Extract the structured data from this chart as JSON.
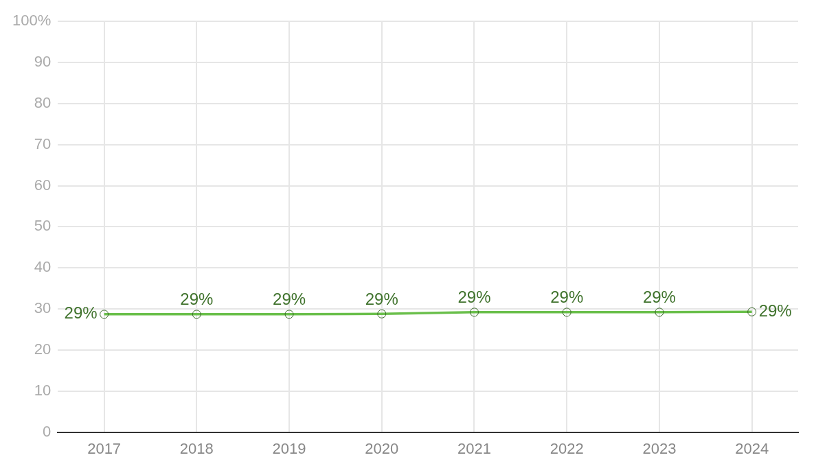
{
  "chart_data": {
    "type": "line",
    "categories": [
      "2017",
      "2018",
      "2019",
      "2020",
      "2021",
      "2022",
      "2023",
      "2024"
    ],
    "series": [
      {
        "color": "#6abf4b",
        "values": [
          28.7,
          28.7,
          28.7,
          28.8,
          29.2,
          29.2,
          29.2,
          29.3
        ],
        "value_labels": [
          "29%",
          "29%",
          "29%",
          "29%",
          "29%",
          "29%",
          "29%",
          "29%"
        ]
      }
    ],
    "ylim": [
      0,
      100
    ],
    "yticks": [
      0,
      10,
      20,
      30,
      40,
      50,
      60,
      70,
      80,
      90,
      {
        "value": 100,
        "label": "100%"
      }
    ],
    "grid": true,
    "legend": false,
    "marker": "circle",
    "line_style": "solid"
  }
}
